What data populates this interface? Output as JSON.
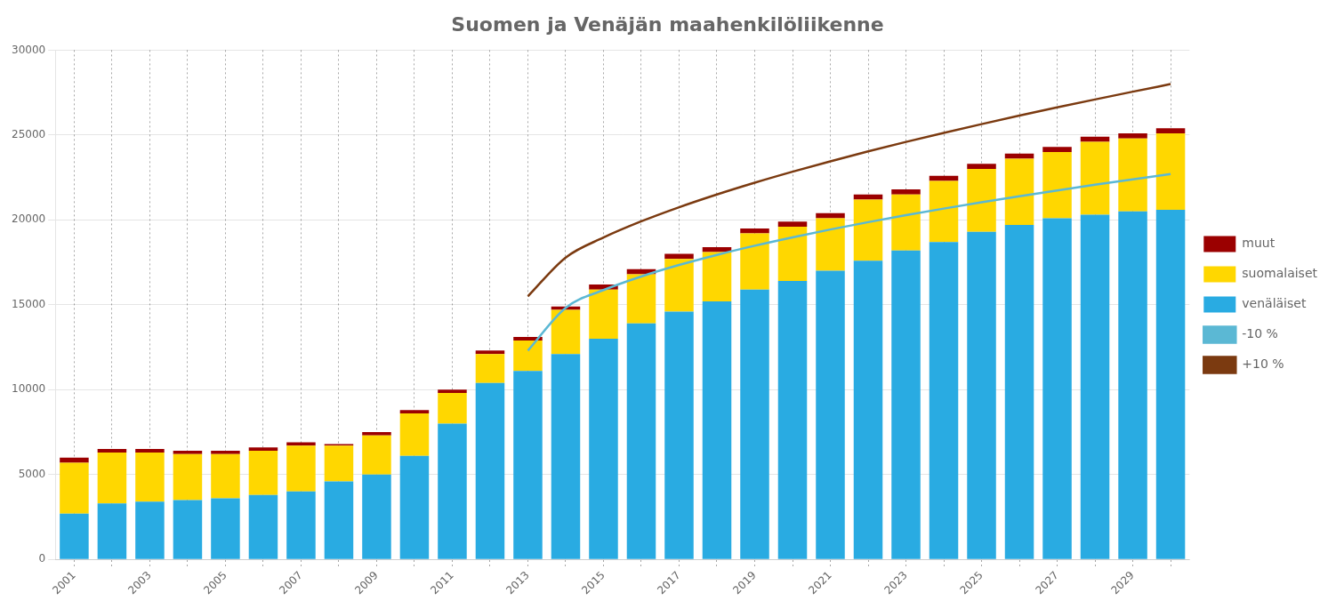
{
  "chart_data": {
    "type": "bar",
    "title": "Suomen ja Venäjän maahenkilöliikenne",
    "categories": [
      "2001",
      null,
      "2003",
      null,
      "2005",
      null,
      "2007",
      null,
      "2009",
      null,
      "2011",
      null,
      "2013",
      null,
      "2015",
      null,
      "2017",
      null,
      "2019",
      null,
      "2021",
      null,
      "2023",
      null,
      "2025",
      null,
      "2027",
      null,
      "2029",
      null
    ],
    "stacked": true,
    "series": [
      {
        "name": "venäläiset",
        "type": "bar",
        "color": "#29ABE2",
        "values": [
          2700,
          3300,
          3400,
          3500,
          3600,
          3800,
          4000,
          4600,
          5000,
          6100,
          8000,
          10400,
          11100,
          12100,
          13000,
          13900,
          14600,
          15200,
          15900,
          16400,
          17000,
          17600,
          18200,
          18700,
          19300,
          19700,
          20100,
          20300,
          20500,
          20600
        ]
      },
      {
        "name": "suomalaiset",
        "type": "bar",
        "color": "#FFD700",
        "values": [
          3000,
          3000,
          2900,
          2700,
          2600,
          2600,
          2700,
          2100,
          2300,
          2500,
          1800,
          1700,
          1800,
          2600,
          2900,
          2900,
          3100,
          2900,
          3300,
          3200,
          3100,
          3600,
          3300,
          3600,
          3700,
          3900,
          3900,
          4300,
          4300,
          4500
        ]
      },
      {
        "name": "muut",
        "type": "bar",
        "color": "#9B0000",
        "values": [
          300,
          200,
          200,
          200,
          200,
          200,
          200,
          100,
          200,
          200,
          200,
          200,
          200,
          200,
          300,
          300,
          300,
          300,
          300,
          300,
          300,
          300,
          300,
          300,
          300,
          300,
          300,
          300,
          300,
          300
        ]
      },
      {
        "name": "-10 %",
        "type": "line",
        "color": "#5BB8D4",
        "values": [
          null,
          null,
          null,
          null,
          null,
          null,
          null,
          null,
          null,
          null,
          null,
          null,
          12300,
          14822,
          15867,
          16669,
          17345,
          17940,
          18479,
          18974,
          19434,
          19867,
          20276,
          20666,
          21038,
          21394,
          21738,
          22069,
          22389,
          22700
        ]
      },
      {
        "name": "+10 %",
        "type": "line",
        "color": "#7B3A10",
        "values": [
          null,
          null,
          null,
          null,
          null,
          null,
          null,
          null,
          null,
          null,
          null,
          null,
          15500,
          17784,
          18961,
          19915,
          20747,
          21498,
          22192,
          22840,
          23452,
          24035,
          24592,
          25127,
          25643,
          26142,
          26625,
          27096,
          27553,
          28000
        ]
      }
    ],
    "ylim": [
      0,
      30000
    ],
    "yticks": [
      0,
      5000,
      10000,
      15000,
      20000,
      25000,
      30000
    ],
    "grid": true,
    "legend": "right"
  }
}
